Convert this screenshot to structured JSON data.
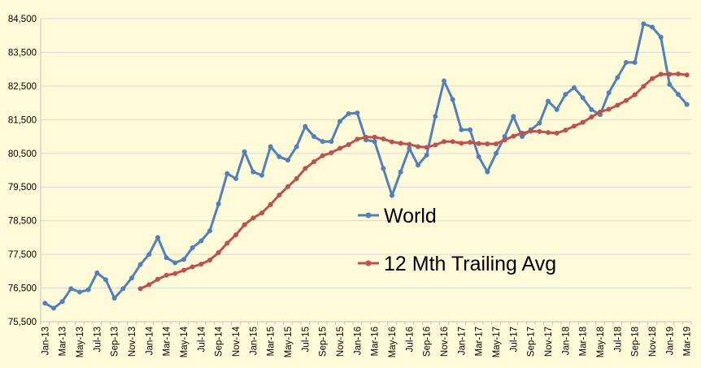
{
  "chart_data": {
    "type": "line",
    "title": "",
    "xlabel": "",
    "ylabel": "",
    "ylim": [
      75500,
      84500
    ],
    "y_ticks": [
      75500,
      76500,
      77500,
      78500,
      79500,
      80500,
      81500,
      82500,
      83500,
      84500
    ],
    "y_tick_labels": [
      "75,500",
      "76,500",
      "77,500",
      "78,500",
      "79,500",
      "80,500",
      "81,500",
      "82,500",
      "83,500",
      "84,500"
    ],
    "x": [
      "Jan-13",
      "Feb-13",
      "Mar-13",
      "Apr-13",
      "May-13",
      "Jun-13",
      "Jul-13",
      "Aug-13",
      "Sep-13",
      "Oct-13",
      "Nov-13",
      "Dec-13",
      "Jan-14",
      "Feb-14",
      "Mar-14",
      "Apr-14",
      "May-14",
      "Jun-14",
      "Jul-14",
      "Aug-14",
      "Sep-14",
      "Oct-14",
      "Nov-14",
      "Dec-14",
      "Jan-15",
      "Feb-15",
      "Mar-15",
      "Apr-15",
      "May-15",
      "Jun-15",
      "Jul-15",
      "Aug-15",
      "Sep-15",
      "Oct-15",
      "Nov-15",
      "Dec-15",
      "Jan-16",
      "Feb-16",
      "Mar-16",
      "Apr-16",
      "May-16",
      "Jun-16",
      "Jul-16",
      "Aug-16",
      "Sep-16",
      "Oct-16",
      "Nov-16",
      "Dec-16",
      "Jan-17",
      "Feb-17",
      "Mar-17",
      "Apr-17",
      "May-17",
      "Jun-17",
      "Jul-17",
      "Aug-17",
      "Sep-17",
      "Oct-17",
      "Nov-17",
      "Dec-17",
      "Jan-18",
      "Feb-18",
      "Mar-18",
      "Apr-18",
      "May-18",
      "Jun-18",
      "Jul-18",
      "Aug-18",
      "Sep-18",
      "Oct-18",
      "Nov-18",
      "Dec-18",
      "Jan-19",
      "Feb-19",
      "Mar-19"
    ],
    "x_tick_labels": [
      "Jan-13",
      "Mar-13",
      "May-13",
      "Jul-13",
      "Sep-13",
      "Nov-13",
      "Jan-14",
      "Mar-14",
      "May-14",
      "Jul-14",
      "Sep-14",
      "Nov-14",
      "Jan-15",
      "Mar-15",
      "May-15",
      "Jul-15",
      "Sep-15",
      "Nov-15",
      "Jan-16",
      "Mar-16",
      "May-16",
      "Jul-16",
      "Sep-16",
      "Nov-16",
      "Jan-17",
      "Mar-17",
      "May-17",
      "Jul-17",
      "Sep-17",
      "Nov-17",
      "Jan-18",
      "Mar-18",
      "May-18",
      "Jul-18",
      "Sep-18",
      "Nov-18",
      "Jan-19",
      "Mar-19"
    ],
    "grid": true,
    "legend_position": "center-right",
    "series": [
      {
        "name": "World",
        "color": "#4f81bd",
        "values": [
          76050,
          75900,
          76100,
          76480,
          76380,
          76450,
          76950,
          76750,
          76200,
          76480,
          76800,
          77200,
          77500,
          78000,
          77400,
          77250,
          77350,
          77700,
          77900,
          78200,
          79000,
          79900,
          79750,
          80550,
          79950,
          79850,
          80700,
          80400,
          80300,
          80700,
          81300,
          81000,
          80850,
          80850,
          81450,
          81680,
          81700,
          80900,
          80850,
          80050,
          79250,
          79950,
          80650,
          80150,
          80450,
          81600,
          82650,
          82100,
          81200,
          81200,
          80400,
          79950,
          80500,
          81000,
          81600,
          81000,
          81200,
          81400,
          82050,
          81800,
          82250,
          82450,
          82150,
          81800,
          81650,
          82300,
          82750,
          83200,
          83200,
          84350,
          84250,
          83950,
          82550,
          82250,
          81950
        ]
      },
      {
        "name": "12 Mth Trailing Avg",
        "color": "#c0504d",
        "values": [
          null,
          null,
          null,
          null,
          null,
          null,
          null,
          null,
          null,
          null,
          null,
          76480,
          76600,
          76760,
          76880,
          76930,
          77030,
          77130,
          77210,
          77330,
          77550,
          77830,
          78080,
          78380,
          78580,
          78730,
          78980,
          79260,
          79510,
          79750,
          80050,
          80250,
          80430,
          80520,
          80650,
          80760,
          80920,
          80980,
          80980,
          80930,
          80840,
          80800,
          80770,
          80700,
          80680,
          80750,
          80850,
          80850,
          80800,
          80830,
          80790,
          80780,
          80780,
          80900,
          81010,
          81100,
          81160,
          81150,
          81120,
          81100,
          81190,
          81310,
          81420,
          81580,
          81730,
          81810,
          81930,
          82070,
          82240,
          82490,
          82720,
          82850,
          82850,
          82860,
          82830
        ]
      }
    ]
  }
}
